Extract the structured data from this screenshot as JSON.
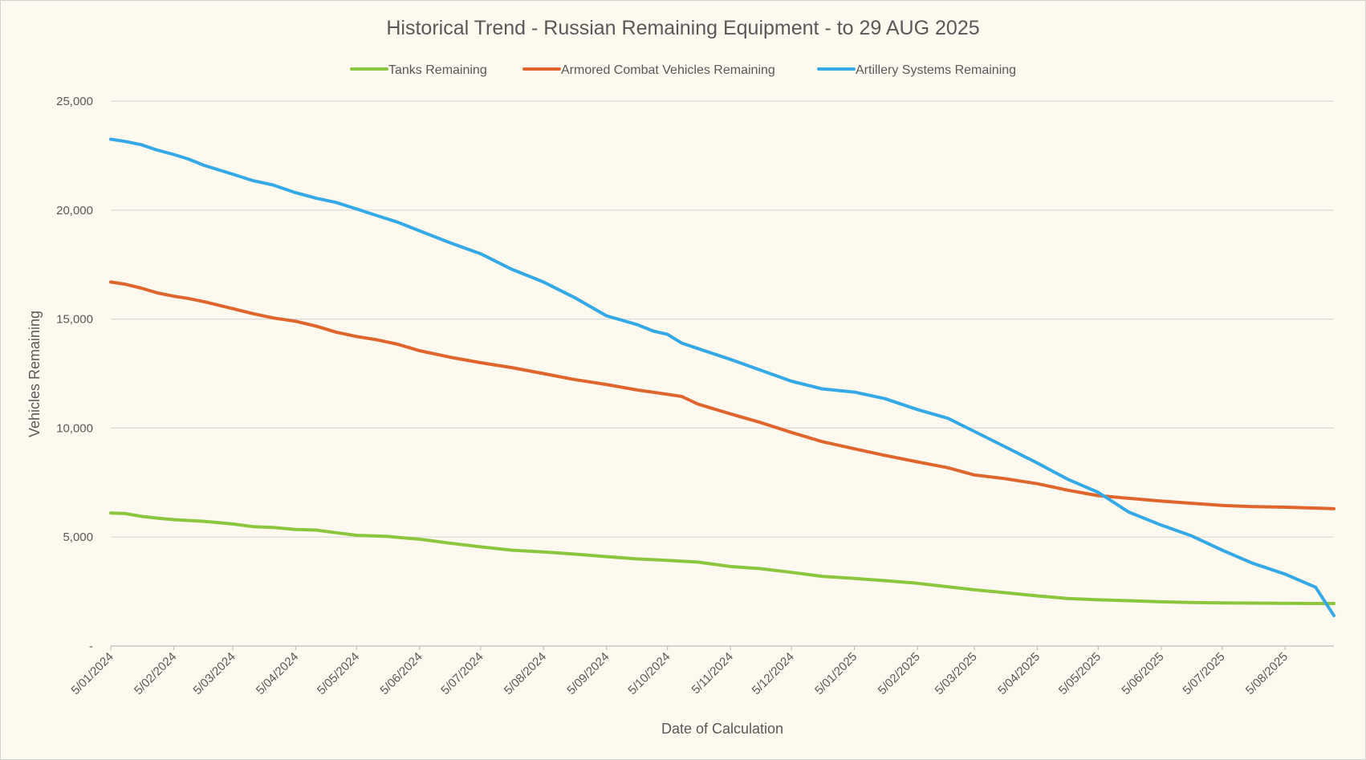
{
  "chart_data": {
    "type": "line",
    "title": "Historical Trend - Russian Remaining Equipment - to 29 AUG 2025",
    "xlabel": "Date of Calculation",
    "ylabel": "Vehicles Remaining",
    "ylim": [
      0,
      25000
    ],
    "yticks": [
      0,
      5000,
      10000,
      15000,
      20000,
      25000
    ],
    "ytick_labels": [
      "-",
      "5,000",
      "10,000",
      "15,000",
      "20,000",
      "25,000"
    ],
    "x_range": [
      "2024-01-05",
      "2025-08-29"
    ],
    "xtick_labels": [
      "5/01/2024",
      "5/02/2024",
      "5/03/2024",
      "5/04/2024",
      "5/05/2024",
      "5/06/2024",
      "5/07/2024",
      "5/08/2024",
      "5/09/2024",
      "5/10/2024",
      "5/11/2024",
      "5/12/2024",
      "5/01/2025",
      "5/02/2025",
      "5/03/2025",
      "5/04/2025",
      "5/05/2025",
      "5/06/2025",
      "5/07/2025",
      "5/08/2025"
    ],
    "xtick_dates": [
      "2024-01-05",
      "2024-02-05",
      "2024-03-05",
      "2024-04-05",
      "2024-05-05",
      "2024-06-05",
      "2024-07-05",
      "2024-08-05",
      "2024-09-05",
      "2024-10-05",
      "2024-11-05",
      "2024-12-05",
      "2025-01-05",
      "2025-02-05",
      "2025-03-05",
      "2025-04-05",
      "2025-05-05",
      "2025-06-05",
      "2025-07-05",
      "2025-08-05"
    ],
    "grid": true,
    "legend_position": "top",
    "series": [
      {
        "name": "Tanks Remaining",
        "color": "#8cc63f",
        "points": [
          [
            "2024-01-05",
            6100
          ],
          [
            "2024-01-12",
            6080
          ],
          [
            "2024-01-20",
            5950
          ],
          [
            "2024-01-28",
            5870
          ],
          [
            "2024-02-05",
            5800
          ],
          [
            "2024-02-20",
            5720
          ],
          [
            "2024-03-05",
            5600
          ],
          [
            "2024-03-15",
            5480
          ],
          [
            "2024-03-25",
            5440
          ],
          [
            "2024-04-05",
            5350
          ],
          [
            "2024-04-15",
            5320
          ],
          [
            "2024-04-25",
            5200
          ],
          [
            "2024-05-05",
            5080
          ],
          [
            "2024-05-20",
            5030
          ],
          [
            "2024-06-05",
            4900
          ],
          [
            "2024-06-20",
            4720
          ],
          [
            "2024-07-05",
            4550
          ],
          [
            "2024-07-20",
            4400
          ],
          [
            "2024-08-05",
            4320
          ],
          [
            "2024-08-20",
            4220
          ],
          [
            "2024-09-05",
            4100
          ],
          [
            "2024-09-20",
            4000
          ],
          [
            "2024-10-05",
            3930
          ],
          [
            "2024-10-20",
            3850
          ],
          [
            "2024-11-05",
            3650
          ],
          [
            "2024-11-20",
            3550
          ],
          [
            "2024-12-05",
            3380
          ],
          [
            "2024-12-20",
            3200
          ],
          [
            "2025-01-05",
            3100
          ],
          [
            "2025-01-20",
            3000
          ],
          [
            "2025-02-05",
            2880
          ],
          [
            "2025-02-20",
            2720
          ],
          [
            "2025-03-05",
            2580
          ],
          [
            "2025-03-20",
            2450
          ],
          [
            "2025-04-05",
            2300
          ],
          [
            "2025-04-20",
            2180
          ],
          [
            "2025-05-05",
            2120
          ],
          [
            "2025-05-20",
            2080
          ],
          [
            "2025-06-05",
            2030
          ],
          [
            "2025-06-20",
            2000
          ],
          [
            "2025-07-05",
            1980
          ],
          [
            "2025-07-20",
            1970
          ],
          [
            "2025-08-05",
            1960
          ],
          [
            "2025-08-20",
            1950
          ],
          [
            "2025-08-29",
            1950
          ]
        ]
      },
      {
        "name": "Armored Combat Vehicles Remaining",
        "color": "#e0652c",
        "points": [
          [
            "2024-01-05",
            16700
          ],
          [
            "2024-01-12",
            16600
          ],
          [
            "2024-01-20",
            16420
          ],
          [
            "2024-01-28",
            16200
          ],
          [
            "2024-02-05",
            16050
          ],
          [
            "2024-02-12",
            15950
          ],
          [
            "2024-02-20",
            15800
          ],
          [
            "2024-03-05",
            15480
          ],
          [
            "2024-03-15",
            15250
          ],
          [
            "2024-03-25",
            15050
          ],
          [
            "2024-04-05",
            14900
          ],
          [
            "2024-04-15",
            14680
          ],
          [
            "2024-04-25",
            14400
          ],
          [
            "2024-05-05",
            14200
          ],
          [
            "2024-05-15",
            14050
          ],
          [
            "2024-05-25",
            13850
          ],
          [
            "2024-06-05",
            13550
          ],
          [
            "2024-06-20",
            13250
          ],
          [
            "2024-07-05",
            13000
          ],
          [
            "2024-07-20",
            12780
          ],
          [
            "2024-08-05",
            12500
          ],
          [
            "2024-08-20",
            12230
          ],
          [
            "2024-09-05",
            12000
          ],
          [
            "2024-09-20",
            11750
          ],
          [
            "2024-10-05",
            11550
          ],
          [
            "2024-10-12",
            11450
          ],
          [
            "2024-10-20",
            11100
          ],
          [
            "2024-11-05",
            10650
          ],
          [
            "2024-11-20",
            10250
          ],
          [
            "2024-12-05",
            9800
          ],
          [
            "2024-12-20",
            9380
          ],
          [
            "2025-01-05",
            9050
          ],
          [
            "2025-01-20",
            8750
          ],
          [
            "2025-02-05",
            8450
          ],
          [
            "2025-02-20",
            8180
          ],
          [
            "2025-03-05",
            7850
          ],
          [
            "2025-03-20",
            7680
          ],
          [
            "2025-04-05",
            7450
          ],
          [
            "2025-04-20",
            7150
          ],
          [
            "2025-05-05",
            6900
          ],
          [
            "2025-05-20",
            6780
          ],
          [
            "2025-06-05",
            6650
          ],
          [
            "2025-06-20",
            6550
          ],
          [
            "2025-07-05",
            6450
          ],
          [
            "2025-07-20",
            6400
          ],
          [
            "2025-08-05",
            6370
          ],
          [
            "2025-08-20",
            6330
          ],
          [
            "2025-08-29",
            6300
          ]
        ]
      },
      {
        "name": "Artillery Systems Remaining",
        "color": "#35a9e6",
        "points": [
          [
            "2024-01-05",
            23250
          ],
          [
            "2024-01-12",
            23150
          ],
          [
            "2024-01-20",
            23000
          ],
          [
            "2024-01-28",
            22750
          ],
          [
            "2024-02-05",
            22550
          ],
          [
            "2024-02-12",
            22350
          ],
          [
            "2024-02-20",
            22050
          ],
          [
            "2024-03-05",
            21650
          ],
          [
            "2024-03-15",
            21350
          ],
          [
            "2024-03-25",
            21150
          ],
          [
            "2024-04-05",
            20800
          ],
          [
            "2024-04-15",
            20550
          ],
          [
            "2024-04-25",
            20350
          ],
          [
            "2024-05-05",
            20050
          ],
          [
            "2024-05-15",
            19750
          ],
          [
            "2024-05-25",
            19450
          ],
          [
            "2024-06-05",
            19050
          ],
          [
            "2024-06-20",
            18500
          ],
          [
            "2024-07-05",
            18000
          ],
          [
            "2024-07-20",
            17300
          ],
          [
            "2024-08-05",
            16700
          ],
          [
            "2024-08-20",
            16000
          ],
          [
            "2024-09-05",
            15150
          ],
          [
            "2024-09-20",
            14750
          ],
          [
            "2024-09-28",
            14450
          ],
          [
            "2024-10-05",
            14300
          ],
          [
            "2024-10-12",
            13900
          ],
          [
            "2024-10-20",
            13650
          ],
          [
            "2024-11-05",
            13150
          ],
          [
            "2024-11-20",
            12650
          ],
          [
            "2024-12-05",
            12150
          ],
          [
            "2024-12-20",
            11800
          ],
          [
            "2025-01-05",
            11650
          ],
          [
            "2025-01-20",
            11350
          ],
          [
            "2025-02-05",
            10850
          ],
          [
            "2025-02-20",
            10450
          ],
          [
            "2025-03-05",
            9850
          ],
          [
            "2025-03-20",
            9150
          ],
          [
            "2025-04-05",
            8400
          ],
          [
            "2025-04-12",
            8050
          ],
          [
            "2025-04-20",
            7650
          ],
          [
            "2025-05-05",
            7050
          ],
          [
            "2025-05-20",
            6150
          ],
          [
            "2025-06-05",
            5550
          ],
          [
            "2025-06-20",
            5050
          ],
          [
            "2025-07-05",
            4400
          ],
          [
            "2025-07-20",
            3800
          ],
          [
            "2025-08-05",
            3300
          ],
          [
            "2025-08-20",
            2700
          ],
          [
            "2025-08-29",
            1400
          ]
        ]
      }
    ]
  }
}
